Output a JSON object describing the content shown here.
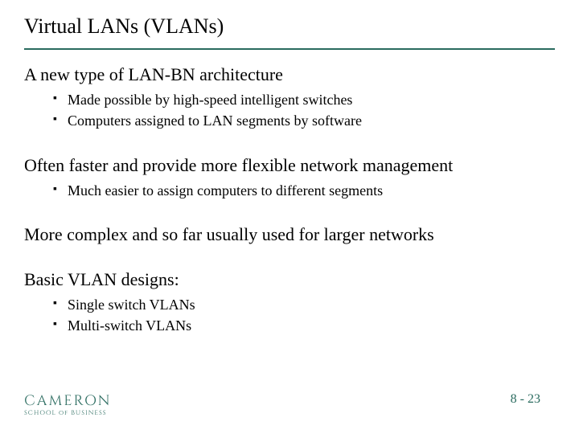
{
  "title": "Virtual LANs (VLANs)",
  "accent_color": "#2a6b5f",
  "sections": {
    "s1": {
      "heading": "A new type of LAN-BN architecture",
      "bullets": [
        "Made possible by high-speed intelligent switches",
        "Computers assigned to LAN segments by software"
      ]
    },
    "s2": {
      "heading": "Often faster and provide more flexible network management",
      "bullets": [
        "Much easier to assign computers to different segments"
      ]
    },
    "s3": {
      "heading": "More complex and so far usually used for larger networks",
      "bullets": []
    },
    "s4": {
      "heading": "Basic VLAN designs:",
      "bullets": [
        "Single switch VLANs",
        "Multi-switch VLANs"
      ]
    }
  },
  "footer": {
    "brand": "CAMERON",
    "sub": "SCHOOL of BUSINESS",
    "page": "8 - 23"
  }
}
